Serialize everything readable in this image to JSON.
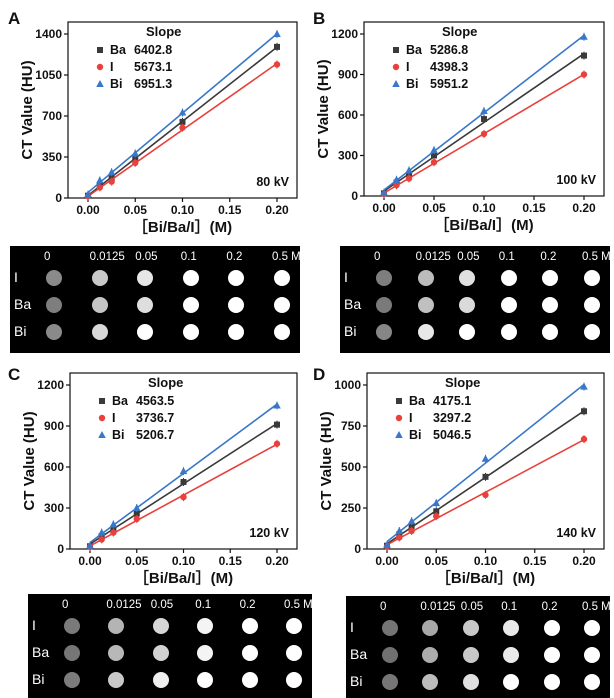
{
  "chart_data": [
    {
      "type": "scatter",
      "panel_label": "A",
      "kv_label": "80 kV",
      "ylabel": "CT Value (HU)",
      "xlabel": "［Bi/Ba/I］(M)",
      "xlim": [
        0,
        0.2
      ],
      "ylim": [
        0,
        1400
      ],
      "xticks": [
        "0.00",
        "0.05",
        "0.10",
        "0.15",
        "0.20"
      ],
      "yticks": [
        "0",
        "350",
        "700",
        "1050",
        "1400"
      ],
      "ytick_values": [
        0,
        350,
        700,
        1050,
        1400
      ],
      "legend_title": "Slope",
      "x": [
        0,
        0.0125,
        0.025,
        0.05,
        0.1,
        0.2
      ],
      "series": [
        {
          "name": "Ba",
          "slope": "6402.8",
          "color": "#3a3a3a",
          "marker": "square",
          "values": [
            20,
            110,
            170,
            340,
            650,
            1290
          ]
        },
        {
          "name": "I",
          "slope": "5673.1",
          "color": "#e8413c",
          "marker": "circle",
          "values": [
            15,
            90,
            140,
            300,
            600,
            1140
          ]
        },
        {
          "name": "Bi",
          "slope": "6951.3",
          "color": "#3877c9",
          "marker": "triangle",
          "values": [
            30,
            150,
            220,
            380,
            730,
            1400
          ]
        }
      ]
    },
    {
      "type": "scatter",
      "panel_label": "B",
      "kv_label": "100 kV",
      "ylabel": "CT Value (HU)",
      "xlabel": "［Bi/Ba/I］(M)",
      "xlim": [
        0,
        0.2
      ],
      "ylim": [
        0,
        1200
      ],
      "xticks": [
        "0.00",
        "0.05",
        "0.10",
        "0.15",
        "0.20"
      ],
      "yticks": [
        "0",
        "300",
        "600",
        "900",
        "1200"
      ],
      "ytick_values": [
        0,
        300,
        600,
        900,
        1200
      ],
      "legend_title": "Slope",
      "x": [
        0,
        0.0125,
        0.025,
        0.05,
        0.1,
        0.2
      ],
      "series": [
        {
          "name": "Ba",
          "slope": "5286.8",
          "color": "#3a3a3a",
          "marker": "square",
          "values": [
            20,
            100,
            160,
            300,
            570,
            1040
          ]
        },
        {
          "name": "I",
          "slope": "4398.3",
          "color": "#e8413c",
          "marker": "circle",
          "values": [
            15,
            80,
            130,
            250,
            460,
            900
          ]
        },
        {
          "name": "Bi",
          "slope": "5951.2",
          "color": "#3877c9",
          "marker": "triangle",
          "values": [
            25,
            120,
            190,
            340,
            630,
            1180
          ]
        }
      ]
    },
    {
      "type": "scatter",
      "panel_label": "C",
      "kv_label": "120 kV",
      "ylabel": "CT Value (HU)",
      "xlabel": "［Bi/Ba/I］(M)",
      "xlim": [
        0,
        0.2
      ],
      "ylim": [
        0,
        1200
      ],
      "xticks": [
        "0.00",
        "0.05",
        "0.10",
        "0.15",
        "0.20"
      ],
      "yticks": [
        "0",
        "300",
        "600",
        "900",
        "1200"
      ],
      "ytick_values": [
        0,
        300,
        600,
        900,
        1200
      ],
      "legend_title": "Slope",
      "x": [
        0,
        0.0125,
        0.025,
        0.05,
        0.1,
        0.2
      ],
      "series": [
        {
          "name": "Ba",
          "slope": "4563.5",
          "color": "#3a3a3a",
          "marker": "square",
          "values": [
            20,
            95,
            150,
            260,
            490,
            910
          ]
        },
        {
          "name": "I",
          "slope": "3736.7",
          "color": "#e8413c",
          "marker": "circle",
          "values": [
            15,
            70,
            120,
            220,
            380,
            770
          ]
        },
        {
          "name": "Bi",
          "slope": "5206.7",
          "color": "#3877c9",
          "marker": "triangle",
          "values": [
            25,
            120,
            180,
            300,
            570,
            1050
          ]
        }
      ]
    },
    {
      "type": "scatter",
      "panel_label": "D",
      "kv_label": "140 kV",
      "ylabel": "CT Value (HU)",
      "xlabel": "［Bi/Ba/I］(M)",
      "xlim": [
        0,
        0.2
      ],
      "ylim": [
        0,
        1000
      ],
      "xticks": [
        "0.00",
        "0.05",
        "0.10",
        "0.15",
        "0.20"
      ],
      "yticks": [
        "0",
        "250",
        "500",
        "750",
        "1000"
      ],
      "ytick_values": [
        0,
        250,
        500,
        750,
        1000
      ],
      "legend_title": "Slope",
      "x": [
        0,
        0.0125,
        0.025,
        0.05,
        0.1,
        0.2
      ],
      "series": [
        {
          "name": "Ba",
          "slope": "4175.1",
          "color": "#3a3a3a",
          "marker": "square",
          "values": [
            20,
            90,
            140,
            230,
            440,
            840
          ]
        },
        {
          "name": "I",
          "slope": "3297.2",
          "color": "#e8413c",
          "marker": "circle",
          "values": [
            15,
            70,
            110,
            200,
            330,
            670
          ]
        },
        {
          "name": "Bi",
          "slope": "5046.5",
          "color": "#3877c9",
          "marker": "triangle",
          "values": [
            25,
            110,
            170,
            280,
            550,
            990
          ]
        }
      ]
    }
  ],
  "phantoms": [
    {
      "concentrations": [
        "0",
        "0.0125",
        "0.05",
        "0.1",
        "0.2",
        "0.5 M"
      ],
      "rows": [
        {
          "label": "I",
          "shades": [
            "#8a8a8a",
            "#c8c8c8",
            "#e6e6e6",
            "#ffffff",
            "#ffffff",
            "#ffffff"
          ]
        },
        {
          "label": "Ba",
          "shades": [
            "#7e7e7e",
            "#c4c4c4",
            "#dedede",
            "#ffffff",
            "#ffffff",
            "#ffffff"
          ]
        },
        {
          "label": "Bi",
          "shades": [
            "#8a8a8a",
            "#d8d8d8",
            "#ffffff",
            "#ffffff",
            "#ffffff",
            "#ffffff"
          ]
        }
      ]
    },
    {
      "concentrations": [
        "0",
        "0.0125",
        "0.05",
        "0.1",
        "0.2",
        "0.5 M"
      ],
      "rows": [
        {
          "label": "I",
          "shades": [
            "#7e7e7e",
            "#bcbcbc",
            "#e0e0e0",
            "#ffffff",
            "#ffffff",
            "#ffffff"
          ]
        },
        {
          "label": "Ba",
          "shades": [
            "#7a7a7a",
            "#c0c0c0",
            "#dadada",
            "#ffffff",
            "#ffffff",
            "#ffffff"
          ]
        },
        {
          "label": "Bi",
          "shades": [
            "#868686",
            "#e8e8e8",
            "#ffffff",
            "#ffffff",
            "#ffffff",
            "#ffffff"
          ]
        }
      ]
    },
    {
      "concentrations": [
        "0",
        "0.0125",
        "0.05",
        "0.1",
        "0.2",
        "0.5 M"
      ],
      "rows": [
        {
          "label": "I",
          "shades": [
            "#7a7a7a",
            "#b4b4b4",
            "#d6d6d6",
            "#f4f4f4",
            "#ffffff",
            "#ffffff"
          ]
        },
        {
          "label": "Ba",
          "shades": [
            "#767676",
            "#b8b8b8",
            "#d2d2d2",
            "#f4f4f4",
            "#ffffff",
            "#ffffff"
          ]
        },
        {
          "label": "Bi",
          "shades": [
            "#7c7c7c",
            "#c8c8c8",
            "#eeeeee",
            "#ffffff",
            "#ffffff",
            "#ffffff"
          ]
        }
      ]
    },
    {
      "concentrations": [
        "0",
        "0.0125",
        "0.05",
        "0.1",
        "0.2",
        "0.5 M"
      ],
      "rows": [
        {
          "label": "I",
          "shades": [
            "#747474",
            "#a8a8a8",
            "#c8c8c8",
            "#e8e8e8",
            "#ffffff",
            "#ffffff"
          ]
        },
        {
          "label": "Ba",
          "shades": [
            "#707070",
            "#acacac",
            "#c8c8c8",
            "#eaeaea",
            "#ffffff",
            "#ffffff"
          ]
        },
        {
          "label": "Bi",
          "shades": [
            "#767676",
            "#bcbcbc",
            "#e0e0e0",
            "#ffffff",
            "#ffffff",
            "#ffffff"
          ]
        }
      ]
    }
  ]
}
